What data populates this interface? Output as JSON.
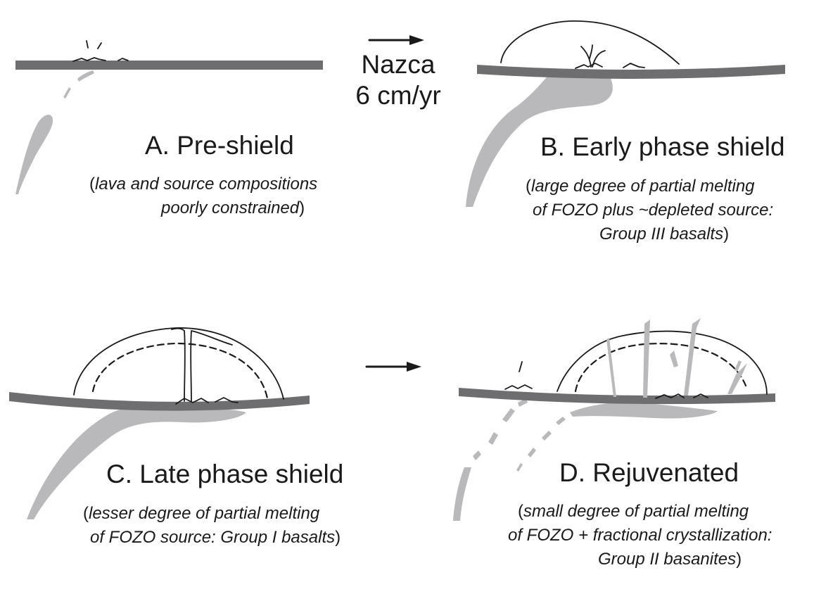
{
  "plate_motion": {
    "plate_name": "Nazca",
    "rate": "6 cm/yr"
  },
  "panels": [
    {
      "id": "A",
      "title": "A. Pre-shield",
      "caption_lines": [
        {
          "pre": "(",
          "it": "lava and source compositions",
          "post": ""
        },
        {
          "pre": "",
          "it": "poorly constrained",
          "post": ")"
        }
      ]
    },
    {
      "id": "B",
      "title": "B. Early phase shield",
      "caption_lines": [
        {
          "pre": "(",
          "it": "large degree of partial melting",
          "post": ""
        },
        {
          "pre": "",
          "it": "of FOZO plus ~depleted source:",
          "post": ""
        },
        {
          "pre": "",
          "it": "Group III basalts",
          "post": ")"
        }
      ]
    },
    {
      "id": "C",
      "title": "C. Late phase shield",
      "caption_lines": [
        {
          "pre": "(",
          "it": "lesser degree of partial melting",
          "post": ""
        },
        {
          "pre": "",
          "it": "of FOZO source: Group I basalts",
          "post": ")"
        }
      ]
    },
    {
      "id": "D",
      "title": "D. Rejuvenated",
      "caption_lines": [
        {
          "pre": "(",
          "it": "small degree of partial melting",
          "post": ""
        },
        {
          "pre": "",
          "it": "of FOZO + fractional crystallization:",
          "post": ""
        },
        {
          "pre": "",
          "it": "Group II basanites",
          "post": ")"
        }
      ]
    }
  ],
  "colors": {
    "plate": "#6e6e70",
    "melt": "#b9b9bb",
    "line": "#1a1a1a"
  }
}
